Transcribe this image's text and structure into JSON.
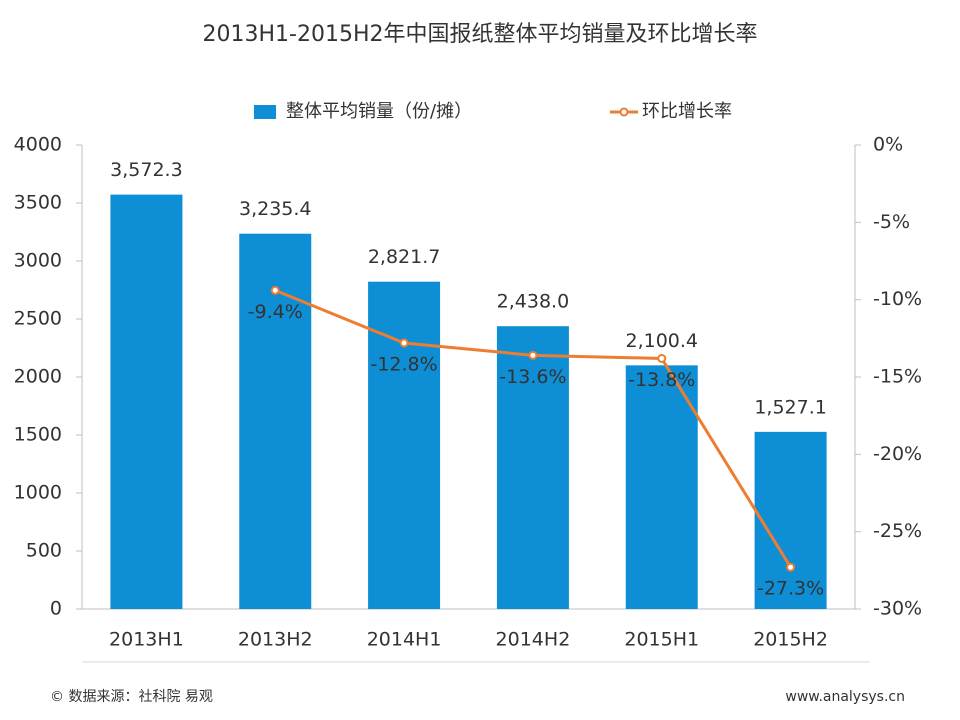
{
  "chart_data": {
    "type": "bar",
    "title": "2013H1-2015H2年中国报纸整体平均销量及环比增长率",
    "categories": [
      "2013H1",
      "2013H2",
      "2014H1",
      "2014H2",
      "2015H1",
      "2015H2"
    ],
    "series": [
      {
        "name": "整体平均销量（份/摊）",
        "type": "bar",
        "color": "#0e8fd5",
        "values": [
          3572.3,
          3235.4,
          2821.7,
          2438.0,
          2100.4,
          1527.1
        ],
        "value_labels": [
          "3,572.3",
          "3,235.4",
          "2,821.7",
          "2,438.0",
          "2,100.4",
          "1,527.1"
        ]
      },
      {
        "name": "环比增长率",
        "type": "line",
        "axis": "y2",
        "color": "#ed7d31",
        "values": [
          null,
          -9.4,
          -12.8,
          -13.6,
          -13.8,
          -27.3
        ],
        "value_labels": [
          null,
          "-9.4%",
          "-12.8%",
          "-13.6%",
          "-13.8%",
          "-27.3%"
        ]
      }
    ],
    "ylim": [
      0,
      4000
    ],
    "yticks": [
      0,
      500,
      1000,
      1500,
      2000,
      2500,
      3000,
      3500,
      4000
    ],
    "y2lim": [
      -30,
      0
    ],
    "y2ticks": [
      {
        "value": -30,
        "label": "-30%"
      },
      {
        "value": -25,
        "label": "-25%"
      },
      {
        "value": -20,
        "label": "-20%"
      },
      {
        "value": -15,
        "label": "-15%"
      },
      {
        "value": -10,
        "label": "-10%"
      },
      {
        "value": -5,
        "label": "-5%"
      },
      {
        "value": 0,
        "label": "0%"
      }
    ],
    "legend": "top",
    "source": "© 数据来源：社科院 易观",
    "website": "www.analysys.cn"
  }
}
